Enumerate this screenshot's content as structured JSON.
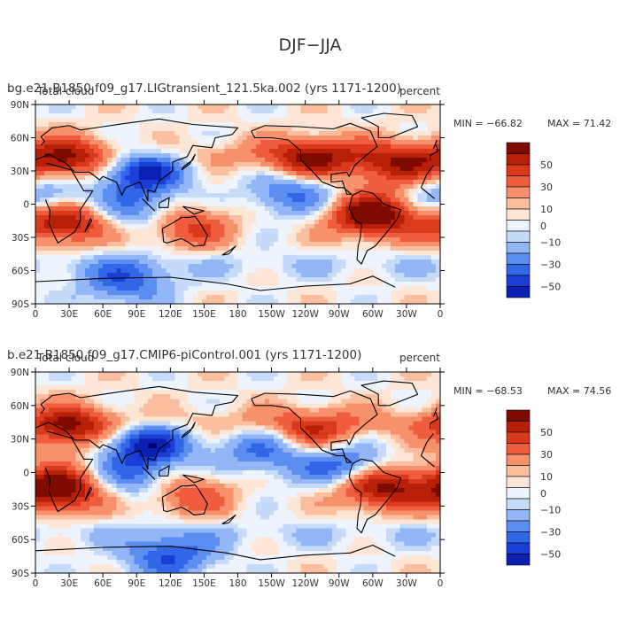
{
  "figure_title": "DJF−JJA",
  "chart_data": [
    {
      "type": "heatmap",
      "subtitle": "bg.e21.B1850.f09_g17.LIGtransient_121.5ka.002 (yrs 1171-1200)",
      "variable_label": "Total cloud",
      "units": "percent",
      "min_label": "MIN = −66.82",
      "max_label": "MAX =  71.42",
      "min": -66.82,
      "max": 71.42,
      "x_ticks": [
        "0",
        "30E",
        "60E",
        "90E",
        "120E",
        "150E",
        "180",
        "150W",
        "120W",
        "90W",
        "60W",
        "30W",
        "0"
      ],
      "y_ticks": [
        "90N",
        "60N",
        "30N",
        "0",
        "30S",
        "60S",
        "90S"
      ],
      "xlim": [
        0,
        360
      ],
      "ylim": [
        -90,
        90
      ],
      "colorbar_labels": [
        "50",
        "30",
        "10",
        "0",
        "−10",
        "−30",
        "−50"
      ],
      "colorbar_levels": [
        -60,
        -50,
        -40,
        -30,
        -20,
        -10,
        -5,
        0,
        5,
        10,
        20,
        30,
        40,
        50,
        60
      ],
      "anomaly_centers": [
        {
          "lon": 25,
          "lat": -15,
          "value": 60
        },
        {
          "lon": 300,
          "lat": -10,
          "value": 65
        },
        {
          "lon": 95,
          "lat": 30,
          "value": -55
        },
        {
          "lon": 30,
          "lat": 40,
          "value": 45
        },
        {
          "lon": 245,
          "lat": 40,
          "value": 45
        },
        {
          "lon": 320,
          "lat": 35,
          "value": 40
        },
        {
          "lon": 135,
          "lat": -20,
          "value": 35
        },
        {
          "lon": 230,
          "lat": 10,
          "value": -35
        },
        {
          "lon": 90,
          "lat": -5,
          "value": -30
        },
        {
          "lon": 10,
          "lat": 5,
          "value": -35
        },
        {
          "lon": 80,
          "lat": -70,
          "value": -35
        }
      ]
    },
    {
      "type": "heatmap",
      "subtitle": "b.e21.B1850.f09_g17.CMIP6-piControl.001 (yrs 1171-1200)",
      "variable_label": "Total cloud",
      "units": "percent",
      "min_label": "MIN = −68.53",
      "max_label": "MAX =  74.56",
      "min": -68.53,
      "max": 74.56,
      "x_ticks": [
        "0",
        "30E",
        "60E",
        "90E",
        "120E",
        "150E",
        "180",
        "150W",
        "120W",
        "90W",
        "60W",
        "30W",
        "0"
      ],
      "y_ticks": [
        "90N",
        "60N",
        "30N",
        "0",
        "30S",
        "60S",
        "90S"
      ],
      "xlim": [
        0,
        360
      ],
      "ylim": [
        -90,
        90
      ],
      "colorbar_labels": [
        "50",
        "30",
        "10",
        "0",
        "−10",
        "−30",
        "−50"
      ],
      "colorbar_levels": [
        -60,
        -50,
        -40,
        -30,
        -20,
        -10,
        -5,
        0,
        5,
        10,
        20,
        30,
        40,
        50,
        60
      ],
      "anomaly_centers": [
        {
          "lon": 22,
          "lat": -15,
          "value": 65
        },
        {
          "lon": 305,
          "lat": -12,
          "value": 60
        },
        {
          "lon": 100,
          "lat": 25,
          "value": -55
        },
        {
          "lon": 30,
          "lat": 40,
          "value": 45
        },
        {
          "lon": 245,
          "lat": 35,
          "value": 35
        },
        {
          "lon": 275,
          "lat": 5,
          "value": -45
        },
        {
          "lon": 135,
          "lat": -20,
          "value": 30
        },
        {
          "lon": 205,
          "lat": 20,
          "value": -35
        },
        {
          "lon": 85,
          "lat": -5,
          "value": -30
        },
        {
          "lon": 120,
          "lat": -75,
          "value": -40
        }
      ]
    }
  ]
}
